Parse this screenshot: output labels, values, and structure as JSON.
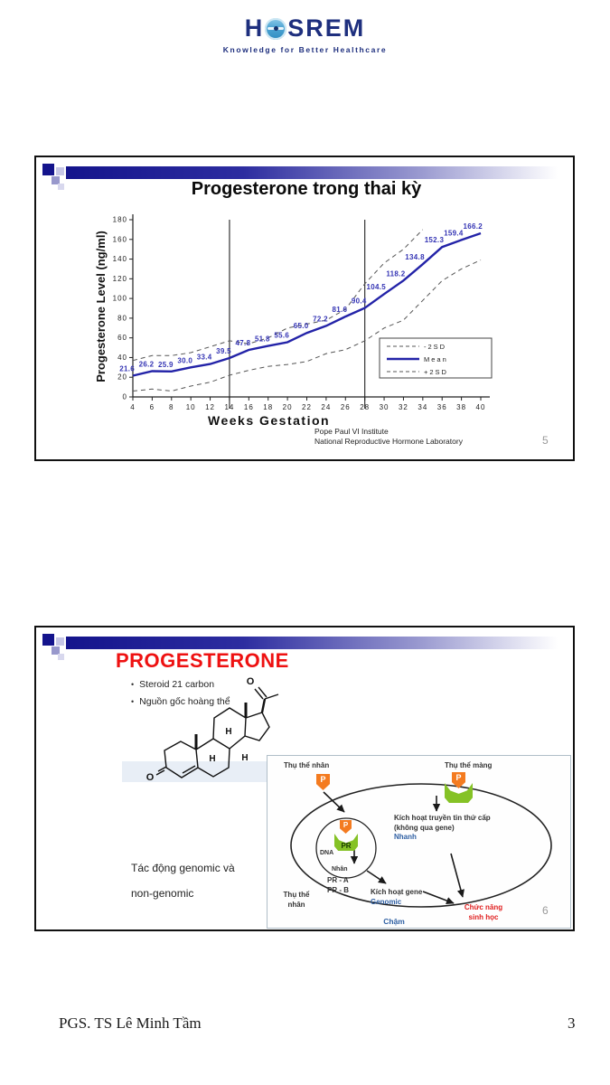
{
  "header": {
    "logo_left": "H",
    "logo_right": "SREM",
    "tagline": "Knowledge for Better Healthcare",
    "brand_color": "#1e2f7e",
    "globe_color": "#4da4d4"
  },
  "footer": {
    "author": "PGS. TS Lê Minh Tầm",
    "page_number": "3"
  },
  "slide1": {
    "title": "Progesterone trong thai kỳ",
    "page_number": "5",
    "credit": [
      "Pope Paul VI Institute",
      "National Reproductive Hormone Laboratory"
    ]
  },
  "chart_data": {
    "type": "line",
    "title": "Progesterone trong thai kỳ",
    "xlabel": "Weeks Gestation",
    "ylabel": "Progesterone Level (ng/ml)",
    "xlim": [
      4,
      40
    ],
    "ylim": [
      0,
      180
    ],
    "yticks": [
      0,
      20,
      40,
      60,
      80,
      100,
      120,
      140,
      160,
      180
    ],
    "x": [
      4,
      6,
      8,
      10,
      12,
      14,
      16,
      18,
      20,
      22,
      24,
      26,
      28,
      30,
      32,
      34,
      36,
      38,
      40
    ],
    "vlines": [
      14,
      28
    ],
    "grid": false,
    "legend_position": "inside right",
    "series": [
      {
        "name": "-2SD",
        "color": "#555555",
        "width": 1,
        "dash": "5,4",
        "values": [
          6,
          8,
          6,
          11,
          15,
          22,
          27,
          31,
          33,
          36,
          44,
          48,
          57,
          70,
          78,
          98,
          118,
          130,
          139
        ]
      },
      {
        "name": "Mean",
        "color": "#2323a8",
        "width": 2.4,
        "dash": "",
        "values": [
          21.6,
          26.2,
          25.9,
          30.0,
          33.4,
          39.5,
          47.8,
          51.8,
          55.6,
          65.0,
          72.2,
          81.6,
          90.4,
          104.5,
          118.2,
          134.8,
          152.3,
          159.4,
          166.2
        ],
        "labels": [
          "21.6",
          "26.2",
          "25.9",
          "30.0",
          "33.4",
          "39.5",
          "47.8",
          "51.8",
          "55.6",
          "65.0",
          "72.2",
          "81.6",
          "90.4",
          "104.5",
          "118.2",
          "134.8",
          "152.3",
          "159.4",
          "166.2"
        ]
      },
      {
        "name": "+2SD",
        "color": "#555555",
        "width": 1,
        "dash": "5,4",
        "values": [
          37,
          42,
          42,
          45,
          51,
          57,
          54,
          60,
          70,
          74,
          78,
          89,
          115,
          136,
          150,
          170,
          null,
          null,
          null
        ]
      }
    ]
  },
  "slide2": {
    "title": "PROGESTERONE",
    "title_color": "#ee1111",
    "bullets": [
      "Steroid 21 carbon",
      "Nguồn gốc hoàng thể"
    ],
    "caption": [
      "Tác động genomic và",
      "non-genomic"
    ],
    "page_number": "6",
    "structure": {
      "oxygen": "O",
      "hydrogen": "H"
    },
    "diagram": {
      "receptor_nuclear_top": "Thụ thể nhân",
      "receptor_membrane": "Thụ thể màng",
      "p": "P",
      "pr": "PR",
      "dna": "DNA",
      "nucleus": "Nhân",
      "pr_a": "PR - A",
      "pr_b": "PR - B",
      "secondary": [
        "Kích hoạt truyền tin thứ cấp",
        "(không qua gene)",
        "Nhanh"
      ],
      "receptor_nuclear_bottom": [
        "Thụ thể",
        "nhân"
      ],
      "gene": [
        "Kích hoạt gene",
        "Genomic"
      ],
      "bio_function": [
        "Chức năng",
        "sinh học"
      ],
      "slow": "Chậm"
    }
  }
}
